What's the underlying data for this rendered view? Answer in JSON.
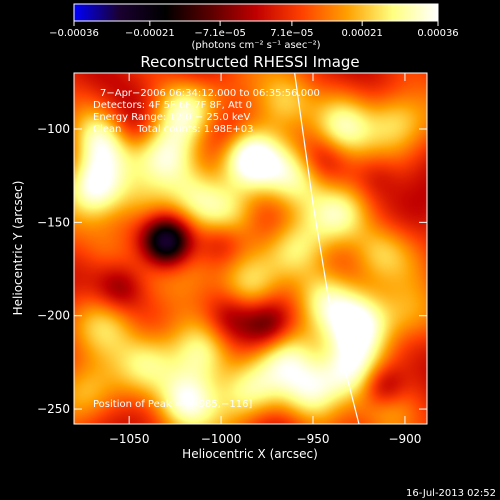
{
  "chart_data": {
    "type": "heatmap",
    "title": "Reconstructed RHESSI Image",
    "xlabel": "Heliocentric X (arcsec)",
    "ylabel": "Heliocentric Y (arcsec)",
    "xlim": [
      -1080,
      -888
    ],
    "ylim": [
      -258,
      -70
    ],
    "xticks": [
      -1050,
      -1000,
      -950,
      -900
    ],
    "yticks": [
      -250,
      -200,
      -150,
      -100
    ],
    "xtick_labels": [
      "−1050",
      "−1000",
      "−950",
      "−900"
    ],
    "ytick_labels": [
      "−250",
      "−200",
      "−150",
      "−100"
    ],
    "colorbar": {
      "range": [
        -0.00036,
        0.00036
      ],
      "ticks": [
        -0.00036,
        -0.00021,
        -7.1e-05,
        7.1e-05,
        0.00021,
        0.00036
      ],
      "tick_labels": [
        "−0.00036",
        "−0.00021",
        "−7.1e−05",
        "7.1e−05",
        "0.00021",
        "0.00036"
      ],
      "unit_label": "(photons cm⁻² s⁻¹ asec⁻²)",
      "colors": [
        "#0000ff",
        "#1a0030",
        "#000000",
        "#5a0000",
        "#c00000",
        "#ff4000",
        "#ffa000",
        "#ffff80",
        "#ffffff"
      ]
    },
    "annotations": [
      "7−Apr−2006 06:34:12.000 to 06:35:56.000",
      "Detectors: 4F 5F 6F 7F 8F, Att 0",
      "Energy Range: 12.0 − 25.0 keV",
      "Clean     Total counts: 1.98E+03"
    ],
    "peak_label": "Position of Peak = [−985,−116]",
    "peak": {
      "x": -985,
      "y": -116
    },
    "limb_curve": [
      [
        -960,
        -70
      ],
      [
        -950,
        -140
      ],
      [
        -940,
        -200
      ],
      [
        -925,
        -258
      ]
    ],
    "sources": [
      {
        "x": -985,
        "y": -116,
        "value": 0.00036
      },
      {
        "x": -1065,
        "y": -105,
        "value": 0.00025
      },
      {
        "x": -1020,
        "y": -90,
        "value": 0.0002
      },
      {
        "x": -965,
        "y": -85,
        "value": 0.00022
      },
      {
        "x": -1070,
        "y": -130,
        "value": 0.00027
      },
      {
        "x": -1030,
        "y": -115,
        "value": 0.00022
      },
      {
        "x": -1015,
        "y": -135,
        "value": 0.00018
      },
      {
        "x": -995,
        "y": -145,
        "value": 0.00015
      },
      {
        "x": -960,
        "y": -125,
        "value": 0.00018
      },
      {
        "x": -935,
        "y": -100,
        "value": 0.00022
      },
      {
        "x": -905,
        "y": -95,
        "value": 0.0002
      },
      {
        "x": -935,
        "y": -145,
        "value": 0.00022
      },
      {
        "x": -915,
        "y": -165,
        "value": 0.00018
      },
      {
        "x": -1040,
        "y": -140,
        "value": 0.00015
      },
      {
        "x": -1065,
        "y": -165,
        "value": 0.00012
      },
      {
        "x": -1015,
        "y": -175,
        "value": 0.00012
      },
      {
        "x": -985,
        "y": -185,
        "value": 0.00015
      },
      {
        "x": -960,
        "y": -165,
        "value": 0.0002
      },
      {
        "x": -945,
        "y": -190,
        "value": 0.00022
      },
      {
        "x": -925,
        "y": -205,
        "value": 0.00025
      },
      {
        "x": -900,
        "y": -200,
        "value": 0.00015
      },
      {
        "x": -1060,
        "y": -205,
        "value": 0.00015
      },
      {
        "x": -1040,
        "y": -225,
        "value": 0.0002
      },
      {
        "x": -1010,
        "y": -220,
        "value": 0.00022
      },
      {
        "x": -1020,
        "y": -245,
        "value": 0.0003
      },
      {
        "x": -985,
        "y": -240,
        "value": 0.0002
      },
      {
        "x": -965,
        "y": -220,
        "value": 0.00018
      },
      {
        "x": -950,
        "y": -240,
        "value": 0.00022
      },
      {
        "x": -930,
        "y": -230,
        "value": 0.00028
      },
      {
        "x": -910,
        "y": -250,
        "value": 0.00018
      },
      {
        "x": -1075,
        "y": -240,
        "value": 0.00018
      },
      {
        "x": -1030,
        "y": -160,
        "value": -0.00036
      },
      {
        "x": -1055,
        "y": -185,
        "value": -0.00012
      },
      {
        "x": -1000,
        "y": -160,
        "value": -0.00012
      },
      {
        "x": -975,
        "y": -205,
        "value": -0.00015
      },
      {
        "x": -995,
        "y": -200,
        "value": -0.0001
      },
      {
        "x": -912,
        "y": -238,
        "value": -0.00022
      },
      {
        "x": -1050,
        "y": -100,
        "value": -8e-05
      },
      {
        "x": -945,
        "y": -115,
        "value": -8e-05
      },
      {
        "x": -915,
        "y": -125,
        "value": -8e-05
      },
      {
        "x": -1000,
        "y": -100,
        "value": -6e-05
      }
    ]
  },
  "footer": {
    "timestamp": "16-Jul-2013 02:52"
  }
}
